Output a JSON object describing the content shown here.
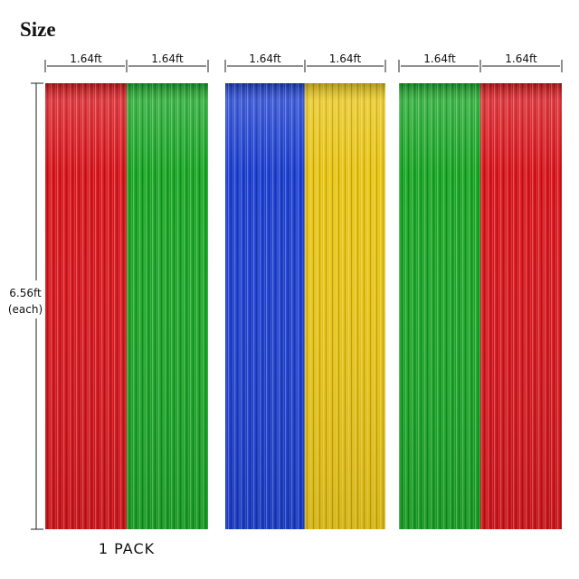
{
  "header": {
    "title": "Size"
  },
  "panels": [
    {
      "width_label": "1.64ft"
    },
    {
      "width_label": "1.64ft"
    },
    {
      "width_label": "1.64ft"
    },
    {
      "width_label": "1.64ft"
    },
    {
      "width_label": "1.64ft"
    },
    {
      "width_label": "1.64ft"
    }
  ],
  "height_label": "6.56ft",
  "height_note": "(each)",
  "footer": "1 PACK"
}
